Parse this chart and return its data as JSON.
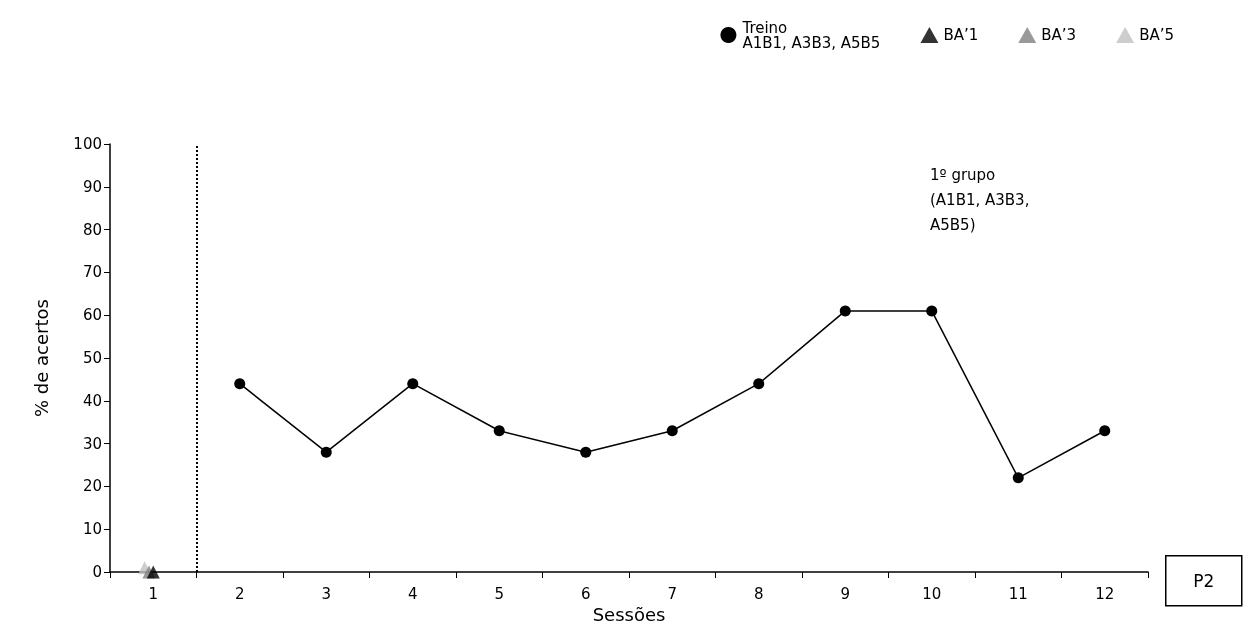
{
  "chart_data": {
    "type": "line",
    "xlabel": "Sessões",
    "ylabel": "% de acertos",
    "series": [
      {
        "name": "Treino\nA1B1, A3B3, A5B5",
        "color": "#000000",
        "marker": "circle",
        "x": [
          2,
          3,
          4,
          5,
          6,
          7,
          8,
          9,
          10,
          11,
          12
        ],
        "values": [
          44,
          28,
          44,
          33,
          28,
          33,
          44,
          61,
          61,
          22,
          33
        ]
      },
      {
        "name": "BA’1",
        "color": "#000000",
        "type": "scatter",
        "marker": "triangle",
        "x": [
          1
        ],
        "values": [
          0
        ]
      },
      {
        "name": "BA’3",
        "color": "#808080",
        "type": "scatter",
        "marker": "triangle",
        "x": [
          0.95
        ],
        "values": [
          0
        ]
      },
      {
        "name": "BA’5",
        "color": "#c0c0c0",
        "type": "scatter",
        "marker": "triangle",
        "x": [
          0.9
        ],
        "values": [
          1
        ]
      }
    ],
    "xlim": [
      0.5,
      12.5
    ],
    "xticks": [
      {
        "value": 0.5,
        "label": null
      },
      1,
      {
        "value": 1.5,
        "label": null
      },
      2,
      {
        "value": 2.5,
        "label": null
      },
      3,
      {
        "value": 3.5,
        "label": null
      },
      4,
      {
        "value": 4.5,
        "label": null
      },
      5,
      {
        "value": 5.5,
        "label": null
      },
      6,
      {
        "value": 6.5,
        "label": null
      },
      7,
      {
        "value": 7.5,
        "label": null
      },
      8,
      {
        "value": 8.5,
        "label": null
      },
      9,
      {
        "value": 9.5,
        "label": null
      },
      10,
      {
        "value": 10.5,
        "label": null
      },
      11,
      {
        "value": 11.5,
        "label": null
      },
      12,
      {
        "value": 12.5,
        "label": null
      }
    ],
    "ylim": [
      0,
      100
    ],
    "yticks": [
      0,
      10,
      20,
      30,
      40,
      50,
      60,
      70,
      80,
      90,
      100
    ],
    "grid": false,
    "legend": "top right",
    "line_style": "solid",
    "ref_lines": [
      {
        "axis": "x",
        "value": 1.5,
        "color": "#000000",
        "line_style": "dotted"
      }
    ],
    "annotations": [
      "1º grupo\n(A1B1, A3B3,\nA5B5)",
      "P2"
    ]
  }
}
